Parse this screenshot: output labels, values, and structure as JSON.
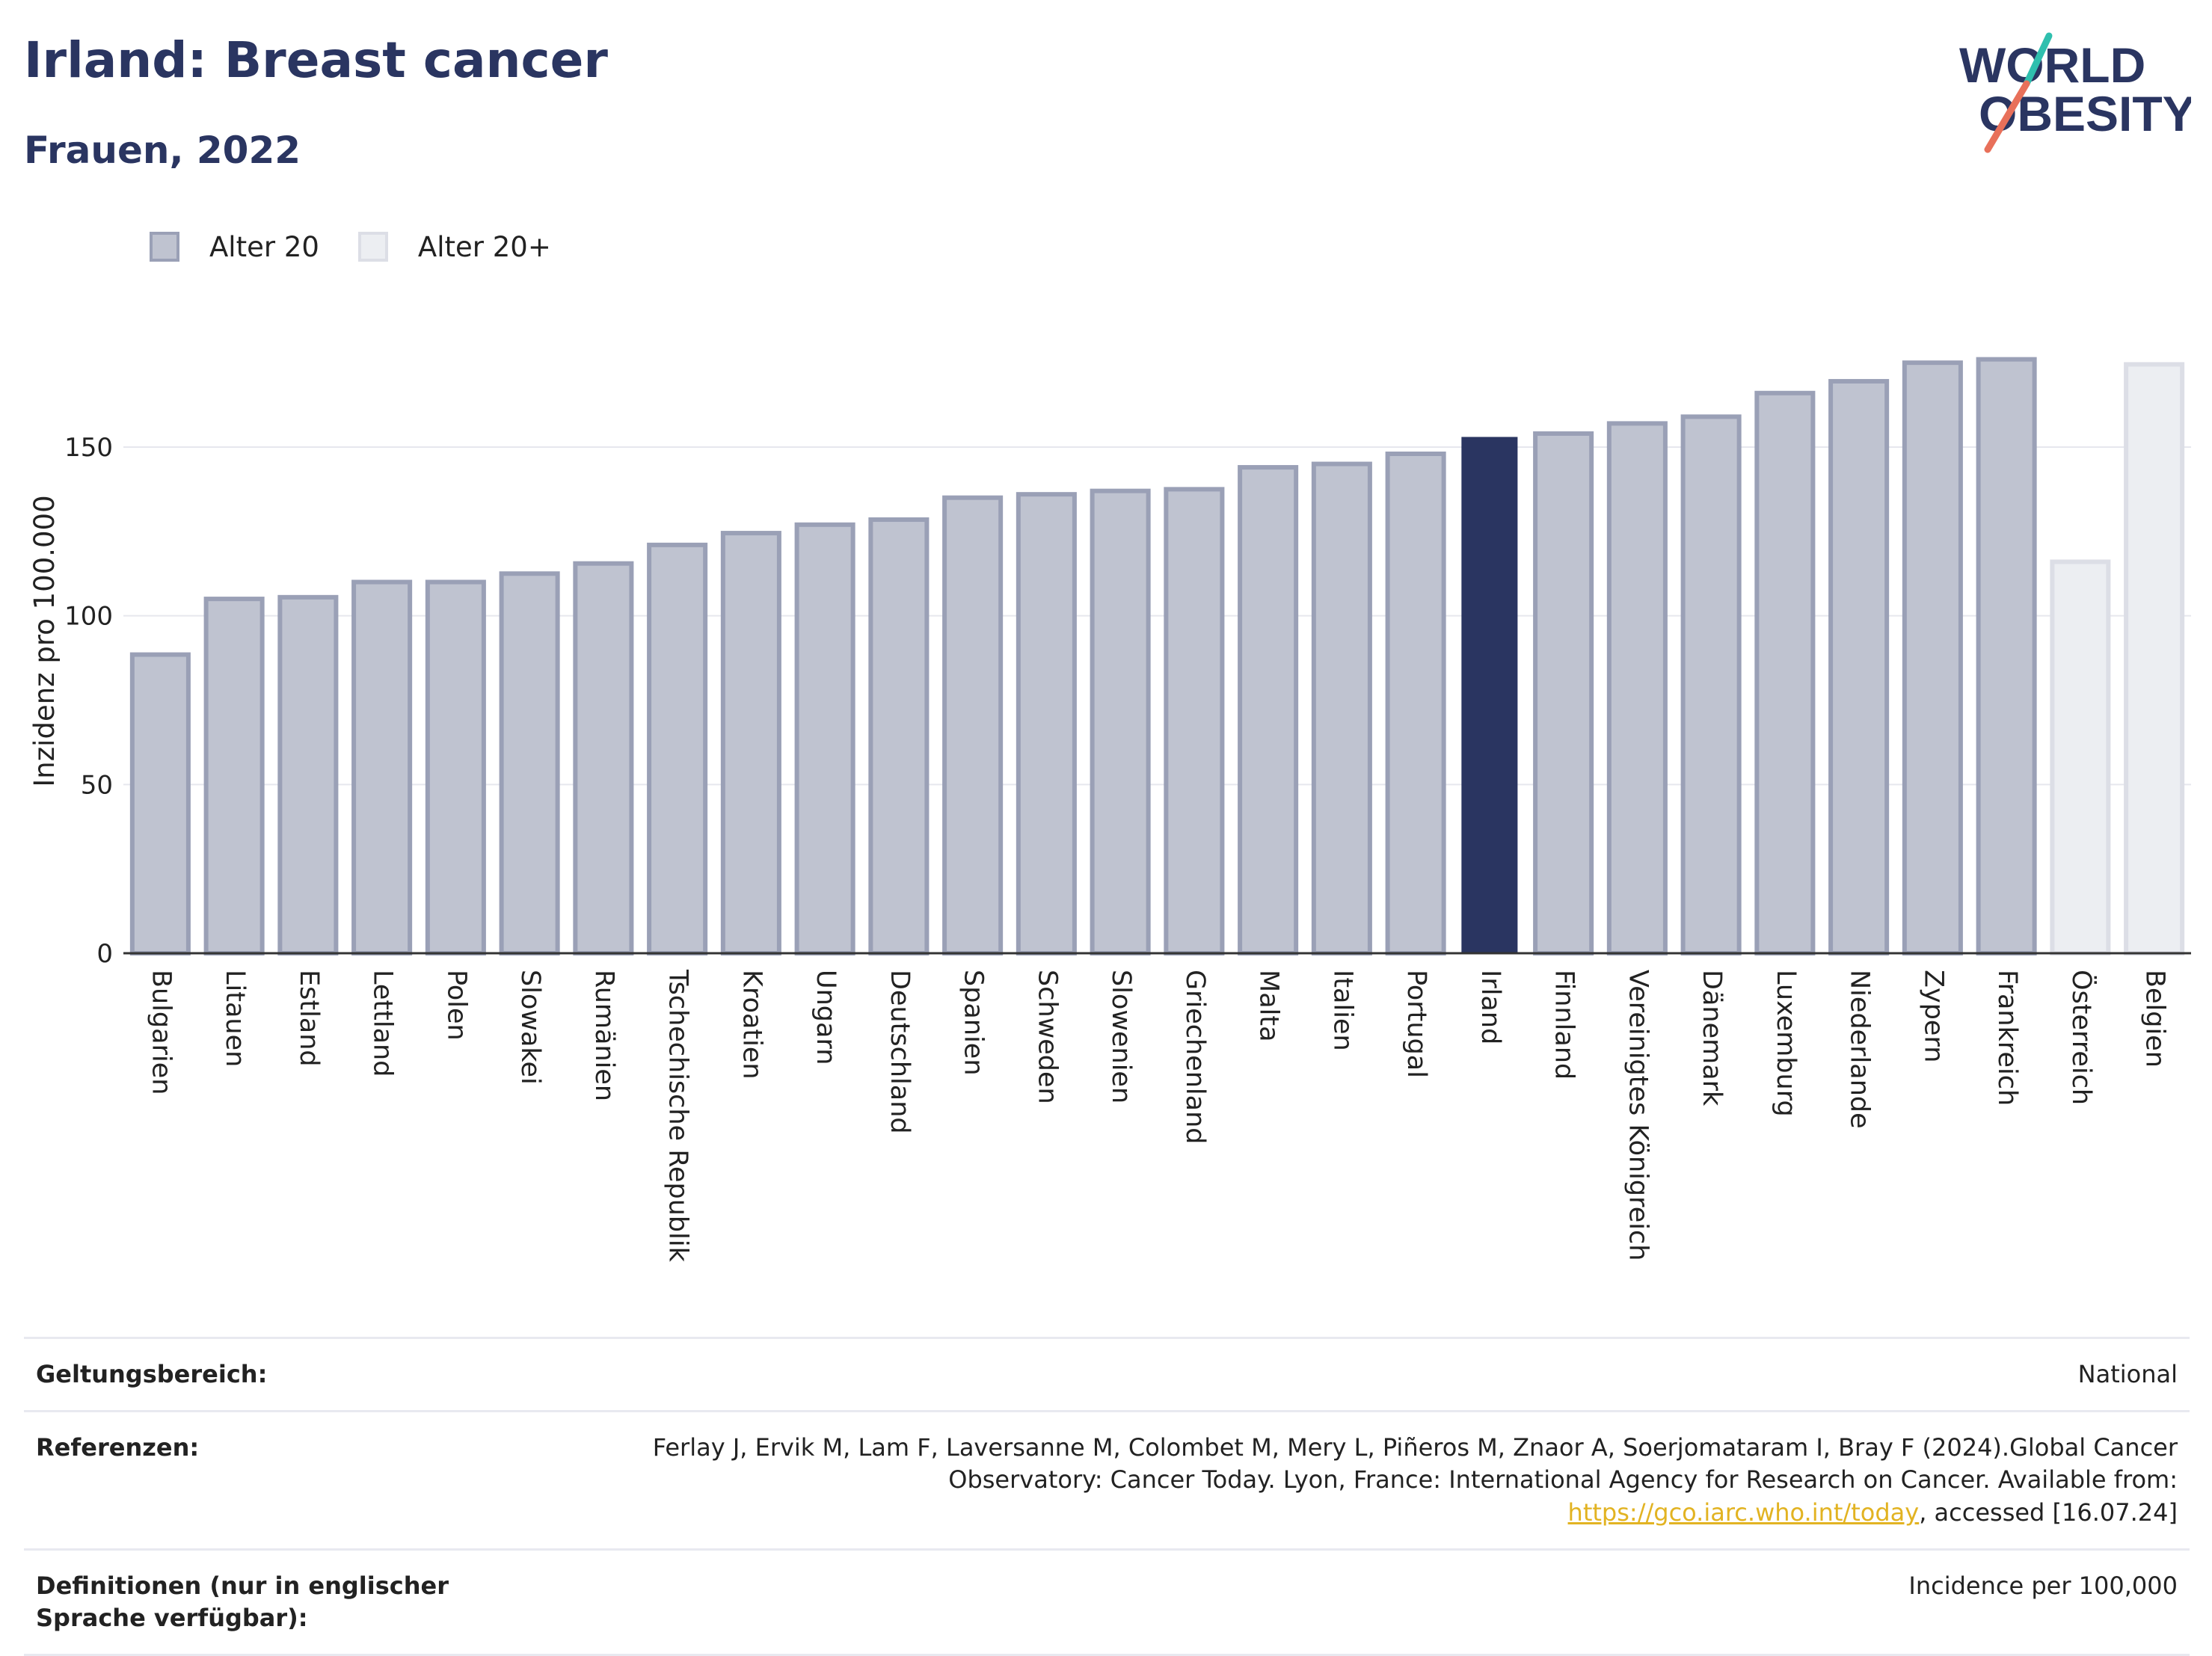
{
  "header": {
    "title": "Irland: Breast cancer",
    "subtitle": "Frauen, 2022"
  },
  "logo": {
    "line1": "WORLD",
    "line2": "OBESITY",
    "accent_colors": [
      "#2fbfae",
      "#e8705a"
    ]
  },
  "legend": [
    {
      "label": "Alter 20",
      "color": "#bfc3d0",
      "border": "#9aa0b6"
    },
    {
      "label": "Alter 20+",
      "color": "#eceef2",
      "border": "#dcdee6"
    }
  ],
  "chart_data": {
    "type": "bar",
    "ylabel": "Inzidenz pro 100.000",
    "ylim": [
      0,
      185
    ],
    "yticks": [
      0,
      50,
      100,
      150
    ],
    "grid": true,
    "highlight": "Irland",
    "colors": {
      "Alter 20": "#bfc3d0",
      "Alter 20+": "#eceef2",
      "highlight": "#2a3561"
    },
    "categories": [
      "Bulgarien",
      "Litauen",
      "Estland",
      "Lettland",
      "Polen",
      "Slowakei",
      "Rumänien",
      "Tschechische Republik",
      "Kroatien",
      "Ungarn",
      "Deutschland",
      "Spanien",
      "Schweden",
      "Slowenien",
      "Griechenland",
      "Malta",
      "Italien",
      "Portugal",
      "Irland",
      "Finnland",
      "Vereinigtes Königreich",
      "Dänemark",
      "Luxemburg",
      "Niederlande",
      "Zypern",
      "Frankreich",
      "Österreich",
      "Belgien"
    ],
    "values": [
      88.5,
      105,
      105.5,
      110,
      110,
      112.5,
      115.5,
      121,
      124.5,
      127,
      128.5,
      135,
      136,
      137,
      137.5,
      144,
      145,
      148,
      153,
      154,
      157,
      159,
      166,
      169.5,
      175,
      176,
      116,
      174.5
    ],
    "series_group": [
      "Alter 20",
      "Alter 20",
      "Alter 20",
      "Alter 20",
      "Alter 20",
      "Alter 20",
      "Alter 20",
      "Alter 20",
      "Alter 20",
      "Alter 20",
      "Alter 20",
      "Alter 20",
      "Alter 20",
      "Alter 20",
      "Alter 20",
      "Alter 20",
      "Alter 20",
      "Alter 20",
      "Alter 20",
      "Alter 20",
      "Alter 20",
      "Alter 20",
      "Alter 20",
      "Alter 20",
      "Alter 20",
      "Alter 20",
      "Alter 20+",
      "Alter 20+"
    ]
  },
  "info": [
    {
      "key": "Geltungsbereich:",
      "value": "National"
    },
    {
      "key": "Referenzen:",
      "value_pre": "Ferlay J, Ervik M, Lam F, Laversanne M, Colombet M, Mery L, Piñeros M, Znaor A, Soerjomataram I, Bray F (2024).Global Cancer Observatory: Cancer Today. Lyon, France: International Agency for Research on Cancer. Available from: ",
      "link": "https://gco.iarc.who.int/today",
      "value_post": ", accessed [16.07.24]"
    },
    {
      "key": "Definitionen (nur in englischer Sprache verfügbar):",
      "value": "Incidence per 100,000"
    }
  ]
}
